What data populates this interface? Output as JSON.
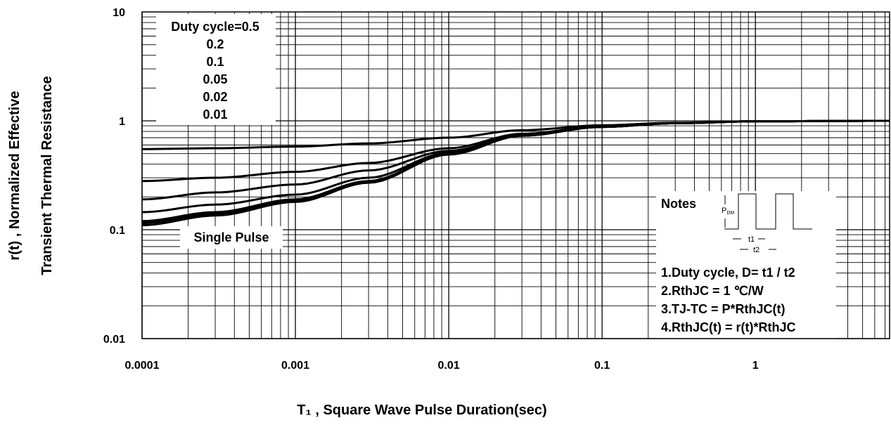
{
  "chart_data": {
    "type": "line",
    "title": "",
    "xlabel": "T₁ , Square Wave Pulse Duration(sec)",
    "ylabel": "r(t) , Normalized Effective",
    "ylabel2": "Transient Thermal Resistance",
    "x_scale": "log",
    "y_scale": "log",
    "xlim": [
      0.0001,
      7.5
    ],
    "ylim": [
      0.01,
      10
    ],
    "grid": true,
    "x_ticks": [
      {
        "value": 0.0001,
        "label": "0.0001"
      },
      {
        "value": 0.001,
        "label": "0.001"
      },
      {
        "value": 0.01,
        "label": "0.01"
      },
      {
        "value": 0.1,
        "label": "0.1"
      },
      {
        "value": 1,
        "label": "1"
      }
    ],
    "y_ticks": [
      {
        "value": 0.01,
        "label": "0.01"
      },
      {
        "value": 0.1,
        "label": "0.1"
      },
      {
        "value": 1,
        "label": "1"
      },
      {
        "value": 10,
        "label": "10"
      }
    ],
    "legend": {
      "placement": "top-left",
      "entries": [
        "Duty cycle=0.5",
        "0.2",
        "0.1",
        "0.05",
        "0.02",
        "0.01"
      ]
    },
    "single_pulse_label": "Single Pulse",
    "x": [
      0.0001,
      0.0003,
      0.001,
      0.003,
      0.01,
      0.03,
      0.1,
      0.3,
      1,
      7.5
    ],
    "series": [
      {
        "name": "0.5",
        "values": [
          0.55,
          0.56,
          0.58,
          0.62,
          0.7,
          0.82,
          0.91,
          0.96,
          0.99,
          1.0
        ]
      },
      {
        "name": "0.2",
        "values": [
          0.28,
          0.3,
          0.34,
          0.41,
          0.56,
          0.76,
          0.89,
          0.95,
          0.99,
          1.0
        ]
      },
      {
        "name": "0.1",
        "values": [
          0.19,
          0.22,
          0.26,
          0.35,
          0.53,
          0.74,
          0.88,
          0.95,
          0.99,
          1.0
        ]
      },
      {
        "name": "0.05",
        "values": [
          0.145,
          0.17,
          0.21,
          0.3,
          0.51,
          0.74,
          0.88,
          0.95,
          0.99,
          1.0
        ]
      },
      {
        "name": "0.02",
        "values": [
          0.12,
          0.145,
          0.19,
          0.28,
          0.5,
          0.73,
          0.88,
          0.95,
          0.99,
          1.0
        ]
      },
      {
        "name": "0.01",
        "values": [
          0.115,
          0.14,
          0.185,
          0.275,
          0.5,
          0.73,
          0.88,
          0.95,
          0.99,
          1.0
        ]
      },
      {
        "name": "Single Pulse",
        "values": [
          0.11,
          0.135,
          0.18,
          0.27,
          0.49,
          0.73,
          0.88,
          0.95,
          0.99,
          1.0
        ]
      }
    ],
    "notes": {
      "title": "Notes",
      "pdm_label": "P",
      "pdm_sub": "DM",
      "t1_label": "t1",
      "t2_label": "t2",
      "lines": [
        "1.Duty cycle, D= t1 / t2",
        "2.RthJC =  1 ℃/W",
        "3.TJ-TC = P*RthJC(t)",
        "4.RthJC(t) = r(t)*RthJC"
      ]
    }
  }
}
